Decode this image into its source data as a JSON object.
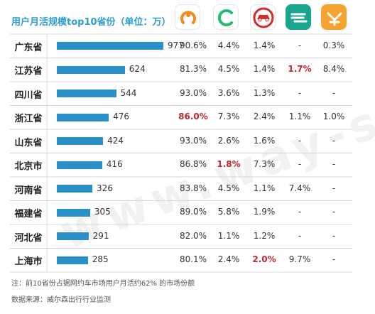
{
  "title": "用户月活规模top10省份（单位：万）",
  "watermark": "www.way-s.cn",
  "logos": [
    {
      "name": "didi-icon",
      "bg": "#ffffff",
      "border": "#e5e5e5",
      "fg": "#f28a1e"
    },
    {
      "name": "cao-cao-icon",
      "bg": "#ffffff",
      "border": "#e5e5e5",
      "fg": "#1ebc6b"
    },
    {
      "name": "shouqi-car-icon",
      "bg": "#ffffff",
      "border": "#e5e5e5",
      "fg": "#d52b2b"
    },
    {
      "name": "shenzhou-icon",
      "bg": "#1aa58f",
      "border": "#1aa58f",
      "fg": "#ffffff"
    },
    {
      "name": "meituan-icon",
      "bg": "#f6a230",
      "border": "#f6a230",
      "fg": "#ffffff"
    }
  ],
  "highlight_color": "#c0262d",
  "bar_color": "#2a90c8",
  "chart_data": {
    "type": "table",
    "title": "用户月活规模top10省份（单位：万）",
    "categories": [
      "广东省",
      "江苏省",
      "四川省",
      "浙江省",
      "山东省",
      "北京市",
      "河南省",
      "福建省",
      "河北省",
      "上海市"
    ],
    "values": [
      977,
      624,
      544,
      476,
      424,
      416,
      326,
      305,
      291,
      285
    ],
    "share_columns": [
      [
        "90.6%",
        "81.3%",
        "93.0%",
        "86.0%",
        "93.0%",
        "86.8%",
        "83.8%",
        "89.0%",
        "82.0%",
        "80.1%"
      ],
      [
        "4.4%",
        "4.5%",
        "3.6%",
        "7.3%",
        "2.6%",
        "1.8%",
        "4.5%",
        "5.8%",
        "1.1%",
        "2.4%"
      ],
      [
        "1.4%",
        "1.4%",
        "1.3%",
        "2.4%",
        "1.6%",
        "7.3%",
        "1.1%",
        "1.9%",
        "1.2%",
        "2.0%"
      ],
      [
        "-",
        "1.7%",
        "-",
        "1.1%",
        "-",
        "-",
        "7.4%",
        "-",
        "-",
        "9.7%"
      ],
      [
        "0.3%",
        "8.4%",
        "-",
        "1.0%",
        "-",
        "-",
        "-",
        "-",
        "-",
        "-"
      ]
    ],
    "highlighted_cells": [
      [
        1,
        3
      ],
      [
        4,
        1
      ],
      [
        2,
        5
      ],
      [
        3,
        9
      ]
    ]
  },
  "footnote": "注：前10省份占据网约车市场用户月活约62% 的市场份额",
  "source": "数据来源：威尔森出行行业监测"
}
